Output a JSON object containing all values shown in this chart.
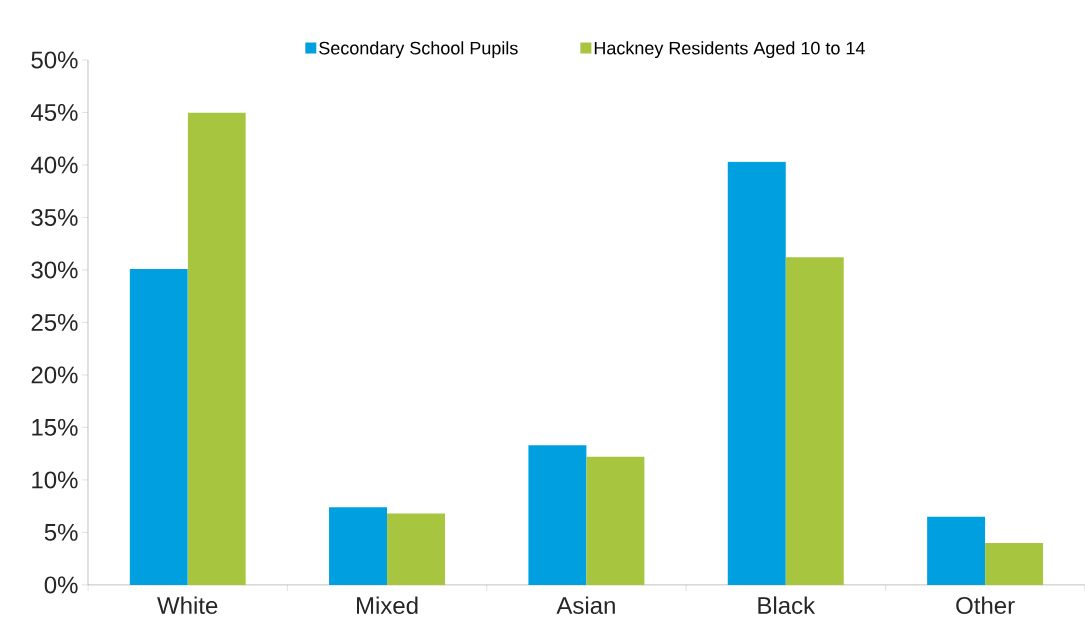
{
  "chart_data": {
    "type": "bar",
    "categories": [
      "White",
      "Mixed",
      "Asian",
      "Black",
      "Other"
    ],
    "series": [
      {
        "name": "Secondary School Pupils",
        "color": "#00a0e0",
        "values": [
          30.1,
          7.4,
          13.3,
          40.3,
          6.5
        ]
      },
      {
        "name": "Hackney Residents Aged 10 to 14",
        "color": "#a8c540",
        "values": [
          45.0,
          6.8,
          12.2,
          31.2,
          4.0
        ]
      }
    ],
    "ylim": [
      0,
      50
    ],
    "yticks": [
      {
        "value": 0,
        "label": "0%"
      },
      {
        "value": 5,
        "label": "5%"
      },
      {
        "value": 10,
        "label": "10%"
      },
      {
        "value": 15,
        "label": "15%"
      },
      {
        "value": 20,
        "label": "20%"
      },
      {
        "value": 25,
        "label": "25%"
      },
      {
        "value": 30,
        "label": "30%"
      },
      {
        "value": 35,
        "label": "35%"
      },
      {
        "value": 40,
        "label": "40%"
      },
      {
        "value": 45,
        "label": "45%"
      },
      {
        "value": 50,
        "label": "50%"
      }
    ],
    "grid": false,
    "legend": "top"
  }
}
